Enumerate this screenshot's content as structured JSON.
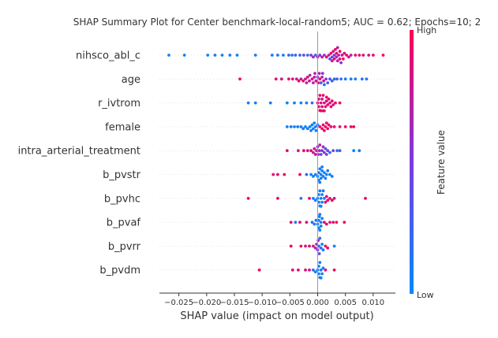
{
  "chart_data": {
    "type": "scatter",
    "subtype": "beeswarm",
    "title": "SHAP Summary Plot for Center benchmark-local-random5; AUC = 0.62; Epochs=10; 2",
    "xlabel": "SHAP value (impact on model output)",
    "xlim": [
      -0.0285,
      0.014
    ],
    "x_ticks": [
      -0.025,
      -0.02,
      -0.015,
      -0.01,
      -0.005,
      0.0,
      0.005,
      0.01
    ],
    "x_tick_labels": [
      "−0.025",
      "−0.020",
      "−0.015",
      "−0.010",
      "−0.005",
      "0.000",
      "0.005",
      "0.010"
    ],
    "grid": false,
    "colorbar": {
      "label": "Feature value",
      "high_label": "High",
      "low_label": "Low",
      "low_color": "#008bfb",
      "high_color": "#ff0052"
    },
    "features": [
      {
        "name": "nihsco_abl_c",
        "points": [
          [
            -0.0268,
            0.05
          ],
          [
            -0.024,
            0.05
          ],
          [
            -0.0198,
            0.05
          ],
          [
            -0.0185,
            0.1
          ],
          [
            -0.0172,
            0.05
          ],
          [
            -0.0158,
            0.1
          ],
          [
            -0.0145,
            0.05
          ],
          [
            -0.0112,
            0.1
          ],
          [
            -0.0082,
            0.05
          ],
          [
            -0.0072,
            0.15
          ],
          [
            -0.0062,
            0.1
          ],
          [
            -0.0052,
            0.2
          ],
          [
            -0.0046,
            0.15
          ],
          [
            -0.004,
            0.3
          ],
          [
            -0.0032,
            0.2
          ],
          [
            -0.0025,
            0.4
          ],
          [
            -0.0018,
            0.25
          ],
          [
            -0.0012,
            0.5
          ],
          [
            -0.0008,
            0.6
          ],
          [
            -0.0004,
            0.3
          ],
          [
            0.0,
            0.7
          ],
          [
            0.0004,
            0.5
          ],
          [
            0.0008,
            0.8
          ],
          [
            0.0012,
            0.6
          ],
          [
            0.0016,
            0.9
          ],
          [
            0.002,
            0.7
          ],
          [
            0.0024,
            0.95
          ],
          [
            0.0028,
            0.8
          ],
          [
            0.0032,
            0.95
          ],
          [
            0.0036,
            0.75
          ],
          [
            0.004,
            0.9
          ],
          [
            0.0044,
            0.85
          ],
          [
            0.0048,
            0.8
          ],
          [
            0.0052,
            0.9
          ],
          [
            0.0056,
            0.85
          ],
          [
            0.006,
            0.7
          ],
          [
            0.0068,
            0.9
          ],
          [
            0.0075,
            0.85
          ],
          [
            0.0082,
            0.9
          ],
          [
            0.0092,
            0.8
          ],
          [
            0.01,
            0.95
          ],
          [
            0.0118,
            1.0
          ],
          [
            0.0022,
            0.35
          ],
          [
            0.0026,
            0.45
          ],
          [
            0.003,
            0.55
          ],
          [
            0.0034,
            0.6
          ],
          [
            0.0038,
            0.65
          ],
          [
            0.0042,
            0.5
          ],
          [
            0.003,
            0.85
          ],
          [
            0.0034,
            0.9
          ],
          [
            0.0026,
            0.85
          ],
          [
            0.004,
            0.95
          ],
          [
            0.0046,
            0.9
          ],
          [
            0.0036,
            0.7
          ]
        ]
      },
      {
        "name": "age",
        "points": [
          [
            -0.014,
            1.0
          ],
          [
            -0.0075,
            0.95
          ],
          [
            -0.0065,
            0.8
          ],
          [
            -0.0052,
            0.9
          ],
          [
            -0.0045,
            0.85
          ],
          [
            -0.0038,
            0.75
          ],
          [
            -0.0034,
            0.95
          ],
          [
            -0.003,
            0.7
          ],
          [
            -0.0026,
            0.9
          ],
          [
            -0.0022,
            0.8
          ],
          [
            -0.0018,
            0.85
          ],
          [
            -0.0014,
            0.6
          ],
          [
            -0.001,
            0.9
          ],
          [
            -0.0006,
            0.7
          ],
          [
            -0.0003,
            0.8
          ],
          [
            0.0,
            0.5
          ],
          [
            0.0003,
            0.7
          ],
          [
            0.0006,
            0.3
          ],
          [
            0.0009,
            0.6
          ],
          [
            0.0012,
            0.2
          ],
          [
            0.0015,
            0.5
          ],
          [
            0.0018,
            0.3
          ],
          [
            0.0022,
            0.4
          ],
          [
            0.0026,
            0.25
          ],
          [
            0.003,
            0.15
          ],
          [
            0.0035,
            0.3
          ],
          [
            0.0042,
            0.1
          ],
          [
            0.005,
            0.15
          ],
          [
            0.006,
            0.1
          ],
          [
            0.0068,
            0.05
          ],
          [
            0.008,
            0.2
          ],
          [
            0.0088,
            0.1
          ],
          [
            -0.0005,
            0.75
          ],
          [
            -0.0015,
            0.8
          ],
          [
            0.0001,
            0.85
          ],
          [
            0.0008,
            0.7
          ],
          [
            -0.0008,
            0.65
          ],
          [
            0.0004,
            0.9
          ],
          [
            -0.002,
            0.7
          ],
          [
            0.0011,
            0.8
          ]
        ]
      },
      {
        "name": "r_ivtrom",
        "points": [
          [
            -0.0125,
            0.1
          ],
          [
            -0.0112,
            0.05
          ],
          [
            -0.0085,
            0.1
          ],
          [
            -0.0055,
            0.05
          ],
          [
            -0.0042,
            0.1
          ],
          [
            -0.003,
            0.05
          ],
          [
            -0.002,
            0.1
          ],
          [
            -0.001,
            0.2
          ],
          [
            0.0,
            0.9
          ],
          [
            0.0002,
            0.8
          ],
          [
            0.0004,
            0.95
          ],
          [
            0.0006,
            0.85
          ],
          [
            0.0008,
            0.9
          ],
          [
            0.001,
            0.95
          ],
          [
            0.0012,
            0.8
          ],
          [
            0.0014,
            0.9
          ],
          [
            0.0016,
            0.85
          ],
          [
            0.0018,
            0.95
          ],
          [
            0.002,
            0.9
          ],
          [
            0.0022,
            0.85
          ],
          [
            0.0024,
            0.95
          ],
          [
            0.0026,
            0.9
          ],
          [
            0.0028,
            0.8
          ],
          [
            0.0032,
            0.9
          ],
          [
            0.004,
            0.95
          ],
          [
            0.0004,
            0.9
          ],
          [
            0.0006,
            0.95
          ],
          [
            0.0002,
            0.85
          ],
          [
            0.001,
            0.9
          ],
          [
            0.0012,
            0.95
          ],
          [
            0.0008,
            0.8
          ],
          [
            0.0016,
            0.9
          ]
        ]
      },
      {
        "name": "female",
        "points": [
          [
            -0.0055,
            0.05
          ],
          [
            -0.0048,
            0.1
          ],
          [
            -0.0042,
            0.05
          ],
          [
            -0.0036,
            0.1
          ],
          [
            -0.003,
            0.05
          ],
          [
            -0.0026,
            0.1
          ],
          [
            -0.0022,
            0.05
          ],
          [
            -0.0018,
            0.1
          ],
          [
            -0.0014,
            0.05
          ],
          [
            -0.001,
            0.1
          ],
          [
            -0.0006,
            0.05
          ],
          [
            -0.0003,
            0.1
          ],
          [
            0.0,
            0.05
          ],
          [
            -0.0008,
            0.05
          ],
          [
            -0.0012,
            0.1
          ],
          [
            -0.0004,
            0.05
          ],
          [
            0.0004,
            0.95
          ],
          [
            0.0008,
            0.9
          ],
          [
            0.0012,
            0.95
          ],
          [
            0.0016,
            0.9
          ],
          [
            0.002,
            0.95
          ],
          [
            0.0024,
            0.85
          ],
          [
            0.003,
            0.95
          ],
          [
            0.004,
            0.9
          ],
          [
            0.005,
            0.95
          ],
          [
            0.006,
            0.9
          ],
          [
            0.0065,
            0.95
          ],
          [
            0.001,
            0.9
          ],
          [
            0.0014,
            0.95
          ],
          [
            0.0018,
            0.9
          ]
        ]
      },
      {
        "name": "intra_arterial_treatment",
        "points": [
          [
            -0.0055,
            0.9
          ],
          [
            -0.0035,
            0.8
          ],
          [
            -0.0025,
            0.95
          ],
          [
            -0.0018,
            0.85
          ],
          [
            -0.0012,
            0.9
          ],
          [
            -0.0008,
            0.7
          ],
          [
            -0.0004,
            0.8
          ],
          [
            0.0,
            0.5
          ],
          [
            0.0003,
            0.7
          ],
          [
            0.0006,
            0.4
          ],
          [
            0.001,
            0.6
          ],
          [
            0.0014,
            0.3
          ],
          [
            0.0018,
            0.5
          ],
          [
            0.0022,
            0.2
          ],
          [
            0.0028,
            0.4
          ],
          [
            0.0035,
            0.1
          ],
          [
            0.004,
            0.3
          ],
          [
            0.0065,
            0.05
          ],
          [
            0.0075,
            0.1
          ],
          [
            -0.0002,
            0.7
          ],
          [
            0.0001,
            0.6
          ],
          [
            0.0004,
            0.75
          ],
          [
            -0.0006,
            0.85
          ],
          [
            0.0008,
            0.5
          ],
          [
            0.0012,
            0.55
          ],
          [
            0.0016,
            0.45
          ]
        ]
      },
      {
        "name": "b_pvstr",
        "points": [
          [
            -0.008,
            0.9
          ],
          [
            -0.0072,
            0.85
          ],
          [
            -0.006,
            0.95
          ],
          [
            -0.0032,
            0.9
          ],
          [
            -0.002,
            0.2
          ],
          [
            -0.0012,
            0.1
          ],
          [
            -0.0008,
            0.05
          ],
          [
            -0.0004,
            0.1
          ],
          [
            0.0,
            0.05
          ],
          [
            0.0002,
            0.1
          ],
          [
            0.0004,
            0.05
          ],
          [
            0.0006,
            0.1
          ],
          [
            0.0008,
            0.05
          ],
          [
            0.001,
            0.1
          ],
          [
            0.0012,
            0.05
          ],
          [
            0.0014,
            0.1
          ],
          [
            0.0016,
            0.05
          ],
          [
            0.0018,
            0.1
          ],
          [
            0.0022,
            0.05
          ],
          [
            0.0026,
            0.1
          ],
          [
            0.0002,
            0.05
          ],
          [
            0.0004,
            0.1
          ],
          [
            0.0006,
            0.05
          ],
          [
            0.0008,
            0.1
          ]
        ]
      },
      {
        "name": "b_pvhc",
        "points": [
          [
            -0.0125,
            1.0
          ],
          [
            -0.0072,
            0.95
          ],
          [
            -0.003,
            0.1
          ],
          [
            -0.0015,
            0.9
          ],
          [
            -0.0008,
            0.05
          ],
          [
            -0.0004,
            0.1
          ],
          [
            0.0,
            0.05
          ],
          [
            0.0002,
            0.1
          ],
          [
            0.0004,
            0.05
          ],
          [
            0.0006,
            0.1
          ],
          [
            0.0008,
            0.05
          ],
          [
            0.001,
            0.1
          ],
          [
            0.0012,
            0.05
          ],
          [
            0.0014,
            0.9
          ],
          [
            0.0016,
            0.95
          ],
          [
            0.0018,
            0.9
          ],
          [
            0.0022,
            0.85
          ],
          [
            0.0026,
            0.9
          ],
          [
            0.003,
            0.8
          ],
          [
            0.0086,
            0.95
          ],
          [
            0.0002,
            0.05
          ],
          [
            0.0004,
            0.1
          ],
          [
            0.0006,
            0.05
          ],
          [
            0.0008,
            0.1
          ]
        ]
      },
      {
        "name": "b_pvaf",
        "points": [
          [
            -0.0048,
            0.9
          ],
          [
            -0.004,
            0.1
          ],
          [
            -0.0032,
            0.9
          ],
          [
            -0.002,
            0.85
          ],
          [
            -0.001,
            0.2
          ],
          [
            -0.0006,
            0.05
          ],
          [
            -0.0003,
            0.1
          ],
          [
            0.0,
            0.05
          ],
          [
            0.0002,
            0.1
          ],
          [
            0.0004,
            0.05
          ],
          [
            0.0006,
            0.1
          ],
          [
            0.0008,
            0.05
          ],
          [
            0.0012,
            0.9
          ],
          [
            0.0016,
            0.95
          ],
          [
            0.0022,
            0.85
          ],
          [
            0.0028,
            0.9
          ],
          [
            0.0034,
            0.95
          ],
          [
            0.0048,
            0.9
          ],
          [
            0.0002,
            0.05
          ],
          [
            0.0004,
            0.1
          ],
          [
            0.0006,
            0.05
          ],
          [
            0.0003,
            0.1
          ]
        ]
      },
      {
        "name": "b_pvrr",
        "points": [
          [
            -0.0048,
            0.95
          ],
          [
            -0.003,
            0.9
          ],
          [
            -0.0022,
            0.85
          ],
          [
            -0.0015,
            0.9
          ],
          [
            -0.0008,
            0.8
          ],
          [
            -0.0004,
            0.7
          ],
          [
            0.0,
            0.5
          ],
          [
            0.0002,
            0.3
          ],
          [
            0.0004,
            0.2
          ],
          [
            0.0006,
            0.1
          ],
          [
            0.0008,
            0.05
          ],
          [
            0.001,
            0.1
          ],
          [
            0.0014,
            0.9
          ],
          [
            0.0018,
            0.85
          ],
          [
            0.003,
            0.05
          ],
          [
            0.0003,
            0.4
          ],
          [
            0.0001,
            0.6
          ],
          [
            -0.0002,
            0.65
          ]
        ]
      },
      {
        "name": "b_pvdm",
        "points": [
          [
            -0.0105,
            0.95
          ],
          [
            -0.0045,
            0.9
          ],
          [
            -0.0035,
            0.85
          ],
          [
            -0.0022,
            0.9
          ],
          [
            -0.0015,
            0.8
          ],
          [
            -0.0008,
            0.2
          ],
          [
            -0.0004,
            0.1
          ],
          [
            0.0,
            0.05
          ],
          [
            0.0002,
            0.1
          ],
          [
            0.0004,
            0.05
          ],
          [
            0.0006,
            0.1
          ],
          [
            0.0008,
            0.05
          ],
          [
            0.001,
            0.1
          ],
          [
            0.0014,
            0.9
          ],
          [
            0.003,
            0.95
          ],
          [
            0.0002,
            0.05
          ],
          [
            0.0004,
            0.1
          ],
          [
            0.0006,
            0.05
          ]
        ]
      }
    ]
  }
}
